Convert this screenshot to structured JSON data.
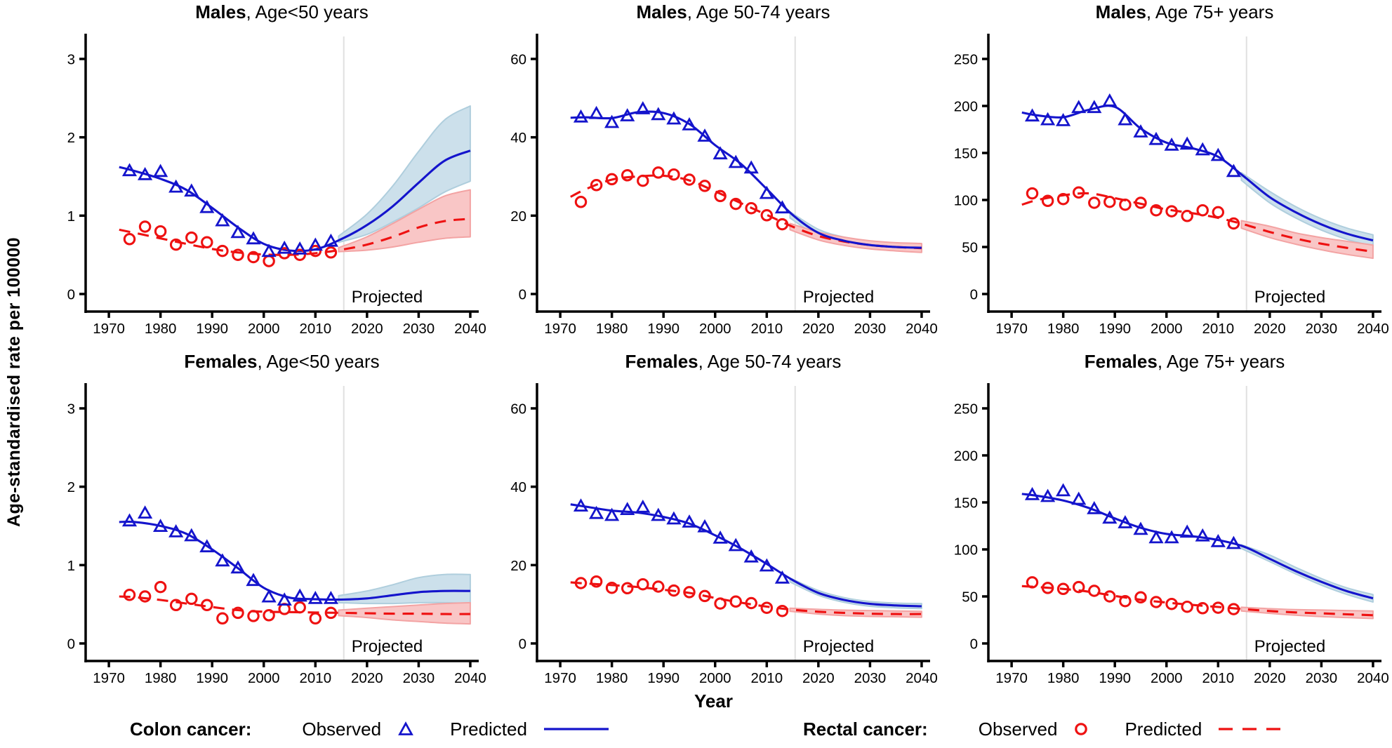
{
  "figure": {
    "ylabel": "Age-standardised rate per 100000",
    "xlabel": "Year",
    "projected_label": "Projected",
    "projection_start_year": 2015,
    "colors": {
      "colon": "#1414CC",
      "rectal": "#EE1111",
      "colon_band": "#CCE0EB",
      "colon_band_edge": "#AFCEDD",
      "rectal_band": "#F9C6C6",
      "rectal_band_edge": "#F3A3A3",
      "vline": "#E0E0E0",
      "axis": "#000000"
    }
  },
  "legend": {
    "colon_label": "Colon cancer:",
    "rectal_label": "Rectal cancer:",
    "observed_label": "Observed",
    "predicted_label": "Predicted"
  },
  "chart_data": [
    {
      "type": "line",
      "title_bold": "Males",
      "title_rest": ", Age<50 years",
      "yticks": [
        0,
        1,
        2,
        3
      ],
      "xticks": [
        1970,
        1980,
        1990,
        2000,
        2010,
        2020,
        2030,
        2040
      ],
      "observed_years": [
        1974,
        1977,
        1980,
        1983,
        1986,
        1989,
        1992,
        1995,
        1998,
        2001,
        2004,
        2007,
        2010,
        2013
      ],
      "colon_observed": [
        1.57,
        1.52,
        1.56,
        1.36,
        1.31,
        1.1,
        0.93,
        0.78,
        0.7,
        0.54,
        0.58,
        0.57,
        0.62,
        0.67
      ],
      "rectal_observed": [
        0.7,
        0.86,
        0.8,
        0.63,
        0.72,
        0.66,
        0.55,
        0.5,
        0.47,
        0.42,
        0.52,
        0.5,
        0.55,
        0.53
      ],
      "predicted_x": [
        1972,
        1975,
        1980,
        1985,
        1990,
        1995,
        2000,
        2005,
        2010,
        2015,
        2020,
        2025,
        2030,
        2035,
        2040
      ],
      "colon_predicted": [
        1.62,
        1.57,
        1.47,
        1.33,
        1.1,
        0.85,
        0.64,
        0.555,
        0.57,
        0.7,
        0.88,
        1.12,
        1.42,
        1.7,
        1.83
      ],
      "rectal_predicted": [
        0.82,
        0.78,
        0.71,
        0.64,
        0.575,
        0.53,
        0.505,
        0.5,
        0.52,
        0.565,
        0.63,
        0.73,
        0.85,
        0.93,
        0.96
      ],
      "ci_x": [
        2014.5,
        2020,
        2025,
        2030,
        2035,
        2040
      ],
      "colon_ci_lower": [
        0.66,
        0.76,
        0.92,
        1.1,
        1.3,
        1.44
      ],
      "colon_ci_upper": [
        0.74,
        1.02,
        1.38,
        1.82,
        2.22,
        2.4
      ],
      "rectal_ci_lower": [
        0.54,
        0.56,
        0.6,
        0.66,
        0.71,
        0.73
      ],
      "rectal_ci_upper": [
        0.59,
        0.73,
        0.9,
        1.08,
        1.25,
        1.33
      ]
    },
    {
      "type": "line",
      "title_bold": "Males",
      "title_rest": ", Age 50-74 years",
      "yticks": [
        0,
        20,
        40,
        60
      ],
      "xticks": [
        1970,
        1980,
        1990,
        2000,
        2010,
        2020,
        2030,
        2040
      ],
      "observed_years": [
        1974,
        1977,
        1980,
        1983,
        1986,
        1989,
        1992,
        1995,
        1998,
        2001,
        2004,
        2007,
        2010,
        2013
      ],
      "colon_observed": [
        45.1,
        46,
        43.7,
        45.4,
        47.2,
        45.7,
        44.6,
        43.1,
        40.2,
        35.7,
        33.5,
        32.1,
        25.6,
        21.9
      ],
      "rectal_observed": [
        23.5,
        27.8,
        29.3,
        30.3,
        28.9,
        31,
        30.5,
        29.2,
        27.6,
        25,
        23,
        21.9,
        20.1,
        17.8
      ],
      "predicted_x": [
        1972,
        1975,
        1980,
        1985,
        1990,
        1995,
        2000,
        2005,
        2010,
        2015,
        2020,
        2025,
        2030,
        2035,
        2040
      ],
      "colon_predicted": [
        45,
        45.1,
        44.9,
        46.4,
        46.2,
        43.4,
        38,
        33.2,
        26.8,
        20.2,
        15.6,
        13.6,
        12.5,
        12,
        11.8
      ],
      "rectal_predicted": [
        24.8,
        26.8,
        29.2,
        30,
        30.2,
        29,
        26.2,
        23.2,
        20.2,
        17.2,
        14.8,
        13.4,
        12.5,
        12,
        11.7
      ],
      "ci_x": [
        2014.5,
        2020,
        2025,
        2030,
        2035,
        2040
      ],
      "colon_ci_lower": [
        19.4,
        14.7,
        12.7,
        11.7,
        11.2,
        10.9
      ],
      "colon_ci_upper": [
        21,
        16.5,
        14.5,
        13.4,
        12.9,
        12.7
      ],
      "rectal_ci_lower": [
        16.4,
        13.8,
        12.4,
        11.5,
        11,
        10.6
      ],
      "rectal_ci_upper": [
        18,
        15.8,
        14.5,
        13.6,
        13.1,
        12.9
      ]
    },
    {
      "type": "line",
      "title_bold": "Males",
      "title_rest": ", Age 75+ years",
      "yticks": [
        0,
        50,
        100,
        150,
        200,
        250
      ],
      "xticks": [
        1970,
        1980,
        1990,
        2000,
        2010,
        2020,
        2030,
        2040
      ],
      "observed_years": [
        1974,
        1977,
        1980,
        1983,
        1986,
        1989,
        1992,
        1995,
        1998,
        2001,
        2004,
        2007,
        2010,
        2013
      ],
      "colon_observed": [
        189,
        185,
        184,
        198,
        198,
        205,
        185,
        172,
        164,
        158,
        159,
        153,
        147,
        130
      ],
      "rectal_observed": [
        107,
        99,
        101,
        108,
        97,
        98,
        95,
        97,
        89,
        88,
        83,
        89,
        87,
        75
      ],
      "predicted_x": [
        1972,
        1975,
        1980,
        1985,
        1990,
        1995,
        2000,
        2005,
        2010,
        2015,
        2020,
        2025,
        2030,
        2035,
        2040
      ],
      "colon_predicted": [
        193,
        190,
        188,
        196,
        199,
        176,
        161,
        155,
        146,
        125,
        103,
        87,
        74,
        64,
        57
      ],
      "rectal_predicted": [
        95,
        100,
        105,
        107,
        102,
        96,
        90,
        86,
        81,
        74,
        66,
        59,
        53.5,
        49,
        45
      ],
      "ci_x": [
        2014.5,
        2020,
        2025,
        2030,
        2035,
        2040
      ],
      "colon_ci_lower": [
        121,
        97,
        81,
        68,
        58,
        51
      ],
      "colon_ci_upper": [
        129,
        109,
        93,
        80,
        70,
        63
      ],
      "rectal_ci_lower": [
        70,
        60,
        53,
        47,
        42,
        38
      ],
      "rectal_ci_upper": [
        78,
        72,
        65,
        60,
        56,
        52
      ]
    },
    {
      "type": "line",
      "title_bold": "Females",
      "title_rest": ", Age<50 years",
      "yticks": [
        0,
        1,
        2,
        3
      ],
      "xticks": [
        1970,
        1980,
        1990,
        2000,
        2010,
        2020,
        2030,
        2040
      ],
      "observed_years": [
        1974,
        1977,
        1980,
        1983,
        1986,
        1989,
        1992,
        1995,
        1998,
        2001,
        2004,
        2007,
        2010,
        2013
      ],
      "colon_observed": [
        1.56,
        1.66,
        1.49,
        1.42,
        1.37,
        1.23,
        1.05,
        0.96,
        0.8,
        0.59,
        0.55,
        0.6,
        0.57,
        0.57
      ],
      "rectal_observed": [
        0.62,
        0.6,
        0.72,
        0.49,
        0.57,
        0.49,
        0.32,
        0.39,
        0.35,
        0.36,
        0.44,
        0.46,
        0.32,
        0.39
      ],
      "predicted_x": [
        1972,
        1975,
        1980,
        1985,
        1990,
        1995,
        2000,
        2005,
        2010,
        2015,
        2020,
        2025,
        2030,
        2035,
        2040
      ],
      "colon_predicted": [
        1.55,
        1.55,
        1.5,
        1.4,
        1.2,
        0.96,
        0.71,
        0.585,
        0.565,
        0.56,
        0.575,
        0.615,
        0.655,
        0.67,
        0.67
      ],
      "rectal_predicted": [
        0.6,
        0.59,
        0.555,
        0.51,
        0.465,
        0.425,
        0.405,
        0.4,
        0.395,
        0.39,
        0.385,
        0.38,
        0.38,
        0.375,
        0.375
      ],
      "ci_x": [
        2014.5,
        2020,
        2025,
        2030,
        2035,
        2040
      ],
      "colon_ci_lower": [
        0.52,
        0.51,
        0.51,
        0.52,
        0.52,
        0.51
      ],
      "colon_ci_upper": [
        0.61,
        0.67,
        0.75,
        0.84,
        0.88,
        0.88
      ],
      "rectal_ci_lower": [
        0.355,
        0.33,
        0.3,
        0.28,
        0.26,
        0.25
      ],
      "rectal_ci_upper": [
        0.425,
        0.45,
        0.47,
        0.49,
        0.51,
        0.52
      ]
    },
    {
      "type": "line",
      "title_bold": "Females",
      "title_rest": ", Age 50-74 years",
      "yticks": [
        0,
        20,
        40,
        60
      ],
      "xticks": [
        1970,
        1980,
        1990,
        2000,
        2010,
        2020,
        2030,
        2040
      ],
      "observed_years": [
        1974,
        1977,
        1980,
        1983,
        1986,
        1989,
        1992,
        1995,
        1998,
        2001,
        2004,
        2007,
        2010,
        2013
      ],
      "colon_observed": [
        35,
        33.1,
        32.6,
        34.1,
        34.7,
        32.6,
        31.7,
        30.9,
        29.7,
        26.8,
        24.9,
        22,
        19.7,
        16.6
      ],
      "rectal_observed": [
        15.4,
        15.8,
        14.2,
        14.1,
        15.1,
        14.5,
        13.5,
        13.1,
        12.1,
        10.2,
        10.7,
        10.3,
        9.1,
        8.3
      ],
      "predicted_x": [
        1972,
        1975,
        1980,
        1985,
        1990,
        1995,
        2000,
        2005,
        2010,
        2015,
        2020,
        2025,
        2030,
        2035,
        2040
      ],
      "colon_predicted": [
        35.5,
        34.9,
        33.9,
        33.4,
        32.3,
        30.6,
        27.6,
        24.2,
        20.3,
        16.2,
        12.9,
        11.1,
        10.1,
        9.7,
        9.5
      ],
      "rectal_predicted": [
        15.6,
        15.3,
        14.9,
        14.4,
        13.7,
        12.9,
        11.6,
        10.4,
        9.4,
        8.6,
        8.1,
        7.8,
        7.6,
        7.5,
        7.5
      ],
      "ci_x": [
        2014.5,
        2020,
        2025,
        2030,
        2035,
        2040
      ],
      "colon_ci_lower": [
        15.7,
        12.3,
        10.5,
        9.5,
        9.1,
        8.9
      ],
      "colon_ci_upper": [
        16.7,
        13.5,
        11.7,
        10.7,
        10.3,
        10.2
      ],
      "rectal_ci_lower": [
        8.2,
        7.5,
        7.1,
        6.9,
        6.8,
        6.7
      ],
      "rectal_ci_upper": [
        9,
        8.7,
        8.5,
        8.4,
        8.3,
        8.2
      ]
    },
    {
      "type": "line",
      "title_bold": "Females",
      "title_rest": ", Age 75+ years",
      "yticks": [
        0,
        50,
        100,
        150,
        200,
        250
      ],
      "xticks": [
        1970,
        1980,
        1990,
        2000,
        2010,
        2020,
        2030,
        2040
      ],
      "observed_years": [
        1974,
        1977,
        1980,
        1983,
        1986,
        1989,
        1992,
        1995,
        1998,
        2001,
        2004,
        2007,
        2010,
        2013
      ],
      "colon_observed": [
        158,
        156,
        162,
        153,
        143,
        133,
        128,
        121,
        112,
        112,
        118,
        114,
        108,
        106
      ],
      "rectal_observed": [
        65,
        59,
        58,
        60,
        56,
        50,
        45,
        49,
        44,
        42,
        39,
        37.5,
        38,
        36.5
      ],
      "predicted_x": [
        1972,
        1975,
        1980,
        1985,
        1990,
        1995,
        2000,
        2005,
        2010,
        2015,
        2020,
        2025,
        2030,
        2035,
        2040
      ],
      "colon_predicted": [
        159,
        157,
        152,
        144,
        133,
        123,
        116.5,
        114,
        110,
        103,
        90,
        77,
        65.5,
        55.5,
        48
      ],
      "rectal_predicted": [
        61,
        60,
        58,
        55,
        50.5,
        46.5,
        43.5,
        41,
        38.8,
        36.5,
        34.5,
        33,
        32,
        31,
        30
      ],
      "ci_x": [
        2014.5,
        2020,
        2025,
        2030,
        2035,
        2040
      ],
      "colon_ci_lower": [
        101,
        87,
        74,
        62,
        52,
        44
      ],
      "colon_ci_upper": [
        105,
        94,
        81,
        69,
        59,
        52
      ],
      "rectal_ci_lower": [
        34.5,
        32,
        30,
        28.5,
        27.5,
        26.5
      ],
      "rectal_ci_upper": [
        38.5,
        37,
        36,
        35.5,
        35,
        34.5
      ]
    }
  ]
}
